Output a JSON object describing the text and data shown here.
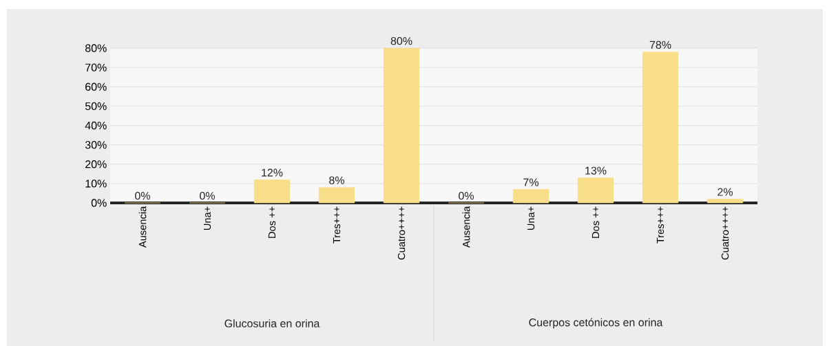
{
  "chart_data": {
    "type": "bar",
    "categories": [
      "Ausencia",
      "Una+",
      "Dos ++",
      "Tres+++",
      "Cuatro++++",
      "Ausencia",
      "Una+",
      "Dos ++",
      "Tres+++",
      "Cuatro++++"
    ],
    "values": [
      0,
      0,
      12,
      8,
      80,
      0,
      7,
      13,
      78,
      2
    ],
    "value_labels": [
      "0%",
      "0%",
      "12%",
      "8%",
      "80%",
      "0%",
      "7%",
      "13%",
      "78%",
      "2%"
    ],
    "color": "#f9de8a",
    "ylim": [
      0,
      80
    ],
    "yticks": [
      {
        "value": 0,
        "label": "0%"
      },
      {
        "value": 10,
        "label": "10%"
      },
      {
        "value": 20,
        "label": "20%"
      },
      {
        "value": 30,
        "label": "30%"
      },
      {
        "value": 40,
        "label": "40%"
      },
      {
        "value": 50,
        "label": "50%"
      },
      {
        "value": 60,
        "label": "60%"
      },
      {
        "value": 70,
        "label": "70%"
      },
      {
        "value": 80,
        "label": "80%"
      }
    ],
    "grid": "y",
    "annotations": [
      "Glucosuria en orina",
      "Cuerpos cetónicos en orina"
    ]
  }
}
